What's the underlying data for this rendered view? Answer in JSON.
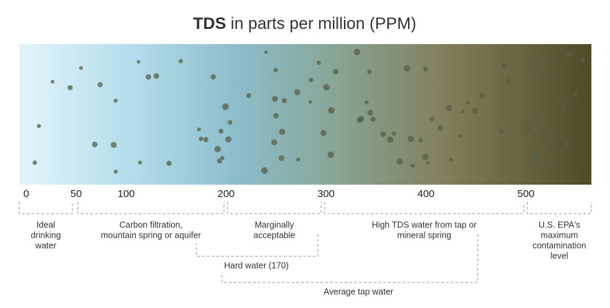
{
  "title": {
    "bold": "TDS",
    "rest": " in parts per million (PPM)"
  },
  "scale": {
    "ticks": [
      0,
      50,
      100,
      200,
      300,
      400,
      500
    ]
  },
  "ranges": [
    {
      "lines": [
        "Ideal",
        "drinking",
        "water"
      ]
    },
    {
      "lines": [
        "Carbon filtration,",
        "mountain spring or aquifer"
      ]
    },
    {
      "lines": [
        "Marginally",
        "acceptable"
      ]
    },
    {
      "lines": [
        "High TDS water from tap or",
        "mineral spring"
      ]
    },
    {
      "lines": [
        "U.S. EPA's",
        "maximum",
        "contamination",
        "level"
      ]
    }
  ],
  "overlaps": [
    {
      "label": "Hard water (170)"
    },
    {
      "label": "Average tap water"
    }
  ]
}
